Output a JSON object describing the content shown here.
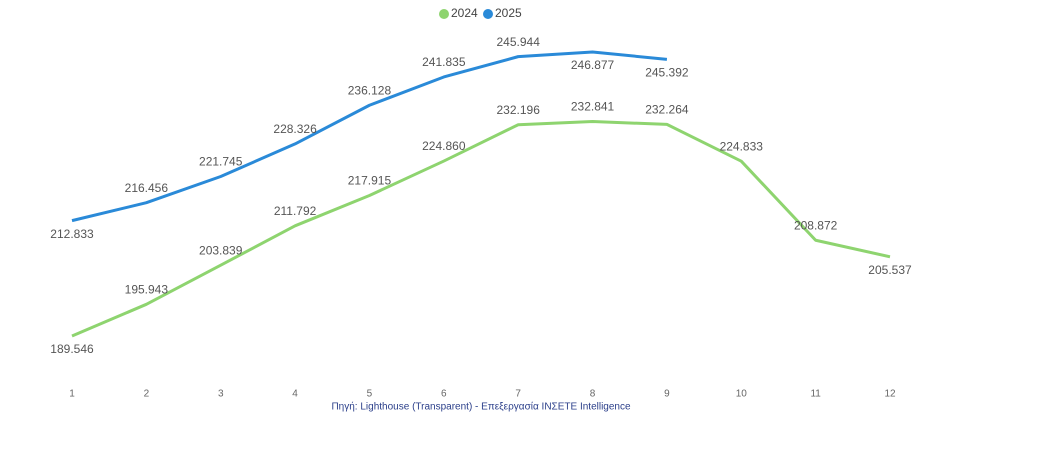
{
  "chart_data": {
    "type": "line",
    "source": "Πηγή: Lighthouse (Transparent) - Επεξεργασία ΙΝΣΕΤΕ Intelligence",
    "categories": [
      "1",
      "2",
      "3",
      "4",
      "5",
      "6",
      "7",
      "8",
      "9",
      "10",
      "11",
      "12"
    ],
    "series": [
      {
        "name": "2024",
        "color": "#8ed46f",
        "values": [
          189.546,
          195.943,
          203.839,
          211.792,
          217.915,
          224.86,
          232.196,
          232.841,
          232.264,
          224.833,
          208.872,
          205.537
        ],
        "value_labels": [
          "189.546",
          "195.943",
          "203.839",
          "211.792",
          "217.915",
          "224.860",
          "232.196",
          "232.841",
          "232.264",
          "224.833",
          "208.872",
          "205.537"
        ]
      },
      {
        "name": "2025",
        "color": "#2a8ad8",
        "values": [
          212.833,
          216.456,
          221.745,
          228.326,
          236.128,
          241.835,
          245.944,
          246.877,
          245.392,
          null,
          null,
          null
        ],
        "value_labels": [
          "212.833",
          "216.456",
          "221.745",
          "228.326",
          "236.128",
          "241.835",
          "245.944",
          "246.877",
          "245.392",
          null,
          null,
          null
        ]
      }
    ]
  }
}
